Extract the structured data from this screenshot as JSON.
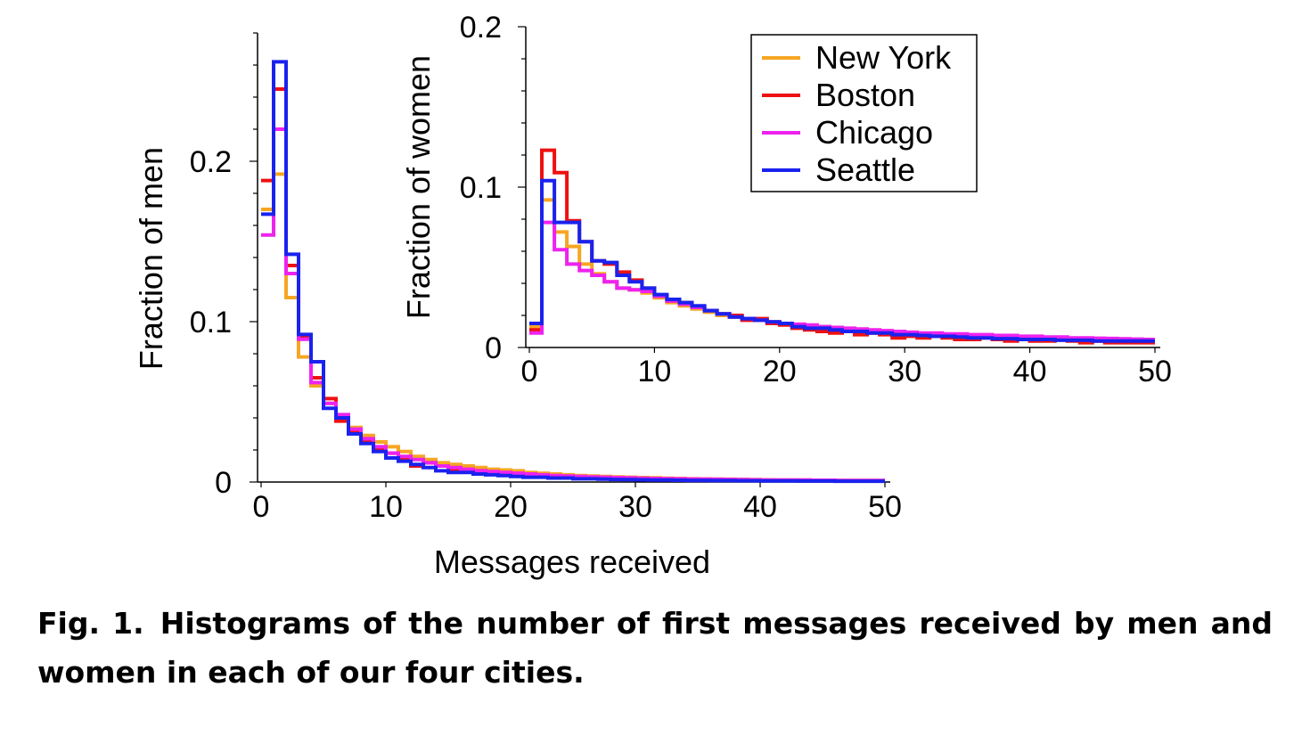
{
  "figure": {
    "xlabel": "Messages received",
    "legend": {
      "placement": "top-right of inset",
      "entries": [
        "New York",
        "Boston",
        "Chicago",
        "Seattle"
      ]
    }
  },
  "caption": {
    "label": "Fig. 1.",
    "text": "Histograms of the number of first messages received by men and women in each of our four cities."
  },
  "chart_data": [
    {
      "type": "line",
      "step": true,
      "panel": "main",
      "ylabel": "Fraction of men",
      "xlabel": "Messages received",
      "xlim": [
        0,
        50
      ],
      "ylim": [
        0,
        0.28
      ],
      "xticks": [
        "0",
        "10",
        "20",
        "30",
        "40",
        "50"
      ],
      "yticks": [
        "0",
        "0.1",
        "0.2"
      ],
      "x": [
        0,
        1,
        2,
        3,
        4,
        5,
        6,
        7,
        8,
        9,
        10,
        11,
        12,
        13,
        14,
        15,
        16,
        17,
        18,
        19,
        20,
        21,
        22,
        23,
        24,
        25,
        26,
        27,
        28,
        29,
        30,
        31,
        32,
        33,
        34,
        35,
        36,
        37,
        38,
        39,
        40,
        41,
        42,
        43,
        44,
        45,
        46,
        47,
        48,
        49
      ],
      "series": [
        {
          "name": "New York",
          "color": "#f5a623",
          "values": [
            0.17,
            0.192,
            0.115,
            0.078,
            0.06,
            0.049,
            0.04,
            0.034,
            0.029,
            0.025,
            0.022,
            0.019,
            0.016,
            0.014,
            0.012,
            0.011,
            0.01,
            0.009,
            0.008,
            0.0075,
            0.007,
            0.006,
            0.0055,
            0.005,
            0.0045,
            0.004,
            0.0038,
            0.0035,
            0.0032,
            0.003,
            0.0028,
            0.0026,
            0.0024,
            0.0022,
            0.002,
            0.0019,
            0.0018,
            0.0017,
            0.0016,
            0.0015,
            0.0014,
            0.0013,
            0.0012,
            0.0012,
            0.0011,
            0.0011,
            0.001,
            0.001,
            0.001,
            0.001
          ]
        },
        {
          "name": "Boston",
          "color": "#ee1111",
          "values": [
            0.188,
            0.245,
            0.135,
            0.09,
            0.065,
            0.052,
            0.038,
            0.031,
            0.026,
            0.021,
            0.018,
            0.015,
            0.01,
            0.012,
            0.01,
            0.008,
            0.007,
            0.007,
            0.006,
            0.0045,
            0.005,
            0.0045,
            0.004,
            0.0035,
            0.003,
            0.003,
            0.0025,
            0.0025,
            0.002,
            0.002,
            0.002,
            0.0018,
            0.0016,
            0.0015,
            0.0014,
            0.0013,
            0.0012,
            0.0011,
            0.001,
            0.001,
            0.001,
            0.0009,
            0.0009,
            0.0008,
            0.0008,
            0.0008,
            0.0007,
            0.0007,
            0.0007,
            0.0007
          ]
        },
        {
          "name": "Chicago",
          "color": "#ee22ee",
          "values": [
            0.154,
            0.22,
            0.13,
            0.089,
            0.062,
            0.049,
            0.042,
            0.033,
            0.027,
            0.022,
            0.018,
            0.016,
            0.014,
            0.012,
            0.01,
            0.009,
            0.008,
            0.007,
            0.0065,
            0.006,
            0.0055,
            0.005,
            0.0045,
            0.004,
            0.0038,
            0.0035,
            0.0032,
            0.003,
            0.0028,
            0.0026,
            0.0024,
            0.0022,
            0.0021,
            0.002,
            0.0019,
            0.0018,
            0.0017,
            0.0016,
            0.0015,
            0.0014,
            0.0013,
            0.0013,
            0.0012,
            0.0012,
            0.0011,
            0.0011,
            0.001,
            0.001,
            0.001,
            0.001
          ]
        },
        {
          "name": "Seattle",
          "color": "#1a22ee",
          "values": [
            0.167,
            0.262,
            0.142,
            0.092,
            0.075,
            0.046,
            0.04,
            0.03,
            0.024,
            0.019,
            0.015,
            0.013,
            0.011,
            0.009,
            0.007,
            0.006,
            0.006,
            0.005,
            0.0045,
            0.004,
            0.0035,
            0.003,
            0.003,
            0.0025,
            0.0025,
            0.002,
            0.002,
            0.0018,
            0.0016,
            0.0015,
            0.0014,
            0.0013,
            0.0012,
            0.0011,
            0.001,
            0.001,
            0.0009,
            0.0009,
            0.0008,
            0.0008,
            0.0007,
            0.0007,
            0.0007,
            0.0006,
            0.0006,
            0.0006,
            0.0005,
            0.0005,
            0.0005,
            0.0005
          ]
        }
      ]
    },
    {
      "type": "line",
      "step": true,
      "panel": "inset",
      "ylabel": "Fraction of women",
      "xlim": [
        0,
        50
      ],
      "ylim": [
        0,
        0.2
      ],
      "xticks": [
        "0",
        "10",
        "20",
        "30",
        "40",
        "50"
      ],
      "yticks": [
        "0",
        "0.1",
        "0.2"
      ],
      "x": [
        0,
        1,
        2,
        3,
        4,
        5,
        6,
        7,
        8,
        9,
        10,
        11,
        12,
        13,
        14,
        15,
        16,
        17,
        18,
        19,
        20,
        21,
        22,
        23,
        24,
        25,
        26,
        27,
        28,
        29,
        30,
        31,
        32,
        33,
        34,
        35,
        36,
        37,
        38,
        39,
        40,
        41,
        42,
        43,
        44,
        45,
        46,
        47,
        48,
        49
      ],
      "series": [
        {
          "name": "New York",
          "color": "#f5a623",
          "values": [
            0.013,
            0.092,
            0.072,
            0.063,
            0.052,
            0.046,
            0.041,
            0.037,
            0.036,
            0.034,
            0.031,
            0.028,
            0.026,
            0.024,
            0.022,
            0.02,
            0.019,
            0.018,
            0.017,
            0.016,
            0.015,
            0.014,
            0.0135,
            0.013,
            0.012,
            0.0115,
            0.011,
            0.0105,
            0.01,
            0.0095,
            0.009,
            0.0085,
            0.008,
            0.0078,
            0.0075,
            0.0072,
            0.007,
            0.0068,
            0.0065,
            0.0062,
            0.006,
            0.0058,
            0.0056,
            0.0054,
            0.0052,
            0.005,
            0.0048,
            0.0046,
            0.0044,
            0.0042
          ]
        },
        {
          "name": "Boston",
          "color": "#ee1111",
          "values": [
            0.011,
            0.123,
            0.109,
            0.079,
            0.066,
            0.054,
            0.052,
            0.047,
            0.042,
            0.037,
            0.032,
            0.029,
            0.028,
            0.025,
            0.023,
            0.021,
            0.02,
            0.017,
            0.018,
            0.015,
            0.014,
            0.012,
            0.011,
            0.01,
            0.009,
            0.01,
            0.008,
            0.009,
            0.008,
            0.006,
            0.007,
            0.006,
            0.007,
            0.006,
            0.005,
            0.005,
            0.006,
            0.005,
            0.004,
            0.005,
            0.004,
            0.004,
            0.005,
            0.004,
            0.003,
            0.004,
            0.003,
            0.003,
            0.003,
            0.003
          ]
        },
        {
          "name": "Chicago",
          "color": "#ee22ee",
          "values": [
            0.009,
            0.078,
            0.061,
            0.052,
            0.048,
            0.045,
            0.041,
            0.037,
            0.036,
            0.035,
            0.032,
            0.029,
            0.027,
            0.025,
            0.023,
            0.021,
            0.019,
            0.018,
            0.017,
            0.016,
            0.015,
            0.0145,
            0.014,
            0.013,
            0.0125,
            0.012,
            0.0115,
            0.011,
            0.0105,
            0.01,
            0.0095,
            0.009,
            0.009,
            0.0085,
            0.0085,
            0.008,
            0.008,
            0.0075,
            0.0075,
            0.007,
            0.007,
            0.0065,
            0.0065,
            0.006,
            0.006,
            0.0058,
            0.0056,
            0.0054,
            0.0052,
            0.005
          ]
        },
        {
          "name": "Seattle",
          "color": "#1a22ee",
          "values": [
            0.015,
            0.104,
            0.078,
            0.078,
            0.066,
            0.054,
            0.053,
            0.045,
            0.041,
            0.037,
            0.033,
            0.03,
            0.028,
            0.026,
            0.023,
            0.021,
            0.019,
            0.018,
            0.017,
            0.016,
            0.015,
            0.013,
            0.012,
            0.012,
            0.011,
            0.01,
            0.01,
            0.009,
            0.009,
            0.008,
            0.008,
            0.0075,
            0.007,
            0.007,
            0.0065,
            0.006,
            0.006,
            0.0055,
            0.0055,
            0.005,
            0.005,
            0.005,
            0.0045,
            0.0045,
            0.0045,
            0.004,
            0.004,
            0.004,
            0.004,
            0.004
          ]
        }
      ]
    }
  ]
}
